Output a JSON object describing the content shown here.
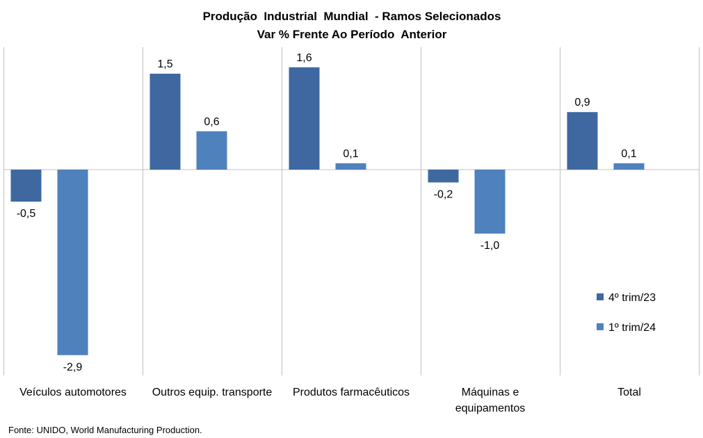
{
  "chart_data": {
    "type": "bar",
    "title": "Produção  Industrial  Mundial  - Ramos Selecionados",
    "subtitle": "Var % Frente Ao Período  Anterior",
    "categories": [
      [
        "Veículos automotores"
      ],
      [
        "Outros equip. transporte"
      ],
      [
        "Produtos farmacêuticos"
      ],
      [
        "Máquinas e",
        "equipamentos"
      ],
      [
        "Total"
      ]
    ],
    "series": [
      {
        "name": "4º trim/23",
        "color": "#3F68A1",
        "values": [
          -0.5,
          1.5,
          1.6,
          -0.2,
          0.9
        ],
        "labels": [
          "-0,5",
          "1,5",
          "1,6",
          "-0,2",
          "0,9"
        ]
      },
      {
        "name": "1º trim/24",
        "color": "#4F81BD",
        "values": [
          -2.9,
          0.6,
          0.1,
          -1.0,
          0.1
        ],
        "labels": [
          "-2,9",
          "0,6",
          "0,1",
          "-1,0",
          "0,1"
        ]
      }
    ],
    "xlabel": "",
    "ylabel": "",
    "ylim": [
      -3.2,
      1.9
    ],
    "grid": false,
    "legend_position": "bottom-right"
  },
  "source_note": "Fonte: UNIDO, World Manufacturing Production."
}
